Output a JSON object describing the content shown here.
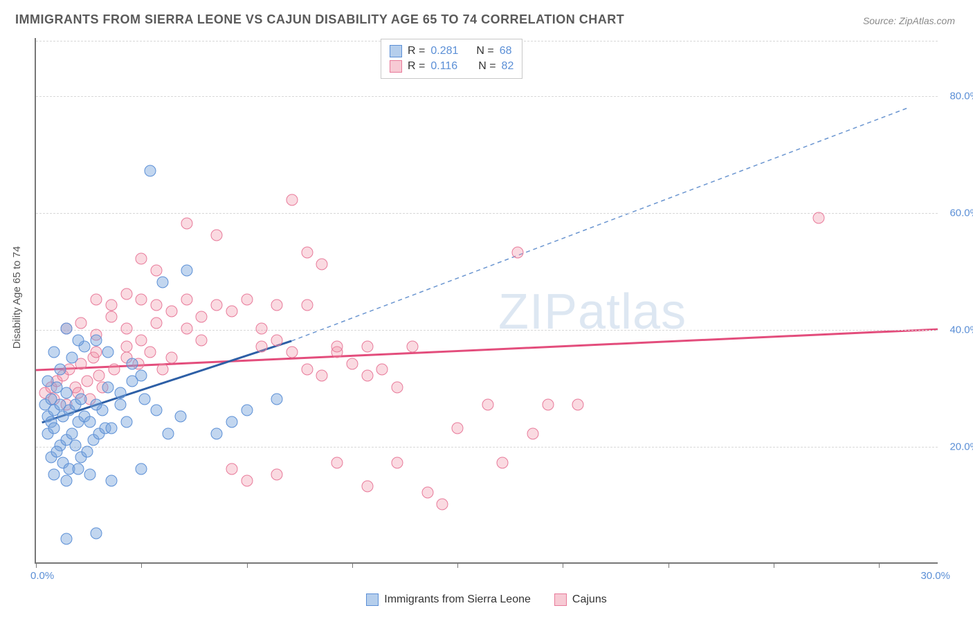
{
  "title": "IMMIGRANTS FROM SIERRA LEONE VS CAJUN DISABILITY AGE 65 TO 74 CORRELATION CHART",
  "source": "Source: ZipAtlas.com",
  "y_axis_label": "Disability Age 65 to 74",
  "watermark": "ZIPatlas",
  "chart": {
    "type": "scatter",
    "xlim": [
      0,
      30
    ],
    "ylim": [
      0,
      90
    ],
    "x_tick_positions": [
      0,
      3.5,
      7,
      10.5,
      14,
      17.5,
      21,
      24.5,
      28
    ],
    "x_tick_labels_shown": {
      "min": "0.0%",
      "max": "30.0%"
    },
    "y_tick_positions": [
      20,
      40,
      60,
      80
    ],
    "y_tick_labels": [
      "20.0%",
      "40.0%",
      "60.0%",
      "80.0%"
    ],
    "grid_color": "#d8d8d8",
    "background_color": "#ffffff",
    "axis_color": "#777777",
    "marker_size": 17,
    "series": [
      {
        "name": "Immigrants from Sierra Leone",
        "color_fill": "rgba(120,165,220,0.45)",
        "color_stroke": "#5b8fd6",
        "R": "0.281",
        "N": "68",
        "trend_line": {
          "x1": 0.2,
          "y1": 24,
          "x2": 8.5,
          "y2": 38,
          "width": 3,
          "dash": "none",
          "color": "#2d5fa6"
        },
        "trend_line_dashed": {
          "x1": 8.5,
          "y1": 38,
          "x2": 29,
          "y2": 78,
          "width": 1.5,
          "dash": "6,5",
          "color": "#6a95d0"
        },
        "points": [
          [
            0.3,
            27
          ],
          [
            0.4,
            25
          ],
          [
            0.5,
            28
          ],
          [
            0.6,
            26
          ],
          [
            0.7,
            30
          ],
          [
            0.5,
            24
          ],
          [
            0.8,
            27
          ],
          [
            0.9,
            25
          ],
          [
            1.0,
            29
          ],
          [
            1.1,
            26
          ],
          [
            0.4,
            22
          ],
          [
            0.6,
            23
          ],
          [
            1.3,
            27
          ],
          [
            1.4,
            24
          ],
          [
            1.5,
            28
          ],
          [
            0.8,
            20
          ],
          [
            1.0,
            21
          ],
          [
            1.2,
            22
          ],
          [
            1.6,
            25
          ],
          [
            1.8,
            24
          ],
          [
            0.5,
            18
          ],
          [
            0.7,
            19
          ],
          [
            0.9,
            17
          ],
          [
            1.1,
            16
          ],
          [
            1.3,
            20
          ],
          [
            1.5,
            18
          ],
          [
            1.7,
            19
          ],
          [
            1.9,
            21
          ],
          [
            2.1,
            22
          ],
          [
            2.3,
            23
          ],
          [
            0.6,
            15
          ],
          [
            1.0,
            14
          ],
          [
            1.4,
            16
          ],
          [
            1.8,
            15
          ],
          [
            2.2,
            26
          ],
          [
            2.5,
            23
          ],
          [
            2.8,
            27
          ],
          [
            3.0,
            24
          ],
          [
            0.4,
            31
          ],
          [
            0.8,
            33
          ],
          [
            1.2,
            35
          ],
          [
            1.6,
            37
          ],
          [
            2.0,
            38
          ],
          [
            2.4,
            36
          ],
          [
            3.2,
            34
          ],
          [
            3.5,
            32
          ],
          [
            1.0,
            40
          ],
          [
            1.4,
            38
          ],
          [
            0.6,
            36
          ],
          [
            2.0,
            27
          ],
          [
            2.4,
            30
          ],
          [
            2.8,
            29
          ],
          [
            3.2,
            31
          ],
          [
            3.6,
            28
          ],
          [
            4.0,
            26
          ],
          [
            4.4,
            22
          ],
          [
            4.8,
            25
          ],
          [
            1.0,
            4
          ],
          [
            2.0,
            5
          ],
          [
            2.5,
            14
          ],
          [
            3.5,
            16
          ],
          [
            4.2,
            48
          ],
          [
            3.8,
            67
          ],
          [
            5.0,
            50
          ],
          [
            6.0,
            22
          ],
          [
            6.5,
            24
          ],
          [
            7.0,
            26
          ],
          [
            8.0,
            28
          ]
        ]
      },
      {
        "name": "Cajuns",
        "color_fill": "rgba(240,150,170,0.35)",
        "color_stroke": "#e87a9a",
        "R": "0.116",
        "N": "82",
        "trend_line": {
          "x1": 0,
          "y1": 33,
          "x2": 30,
          "y2": 40,
          "width": 3,
          "dash": "none",
          "color": "#e34d7c"
        },
        "points": [
          [
            0.3,
            29
          ],
          [
            0.5,
            30
          ],
          [
            0.7,
            31
          ],
          [
            0.9,
            32
          ],
          [
            1.1,
            33
          ],
          [
            1.3,
            30
          ],
          [
            1.5,
            34
          ],
          [
            1.7,
            31
          ],
          [
            1.9,
            35
          ],
          [
            2.1,
            32
          ],
          [
            0.6,
            28
          ],
          [
            1.0,
            27
          ],
          [
            1.4,
            29
          ],
          [
            1.8,
            28
          ],
          [
            2.2,
            30
          ],
          [
            2.6,
            33
          ],
          [
            3.0,
            35
          ],
          [
            3.4,
            34
          ],
          [
            3.8,
            36
          ],
          [
            4.2,
            33
          ],
          [
            1.0,
            40
          ],
          [
            1.5,
            41
          ],
          [
            2.0,
            39
          ],
          [
            2.5,
            42
          ],
          [
            3.0,
            40
          ],
          [
            3.5,
            38
          ],
          [
            4.0,
            41
          ],
          [
            4.5,
            43
          ],
          [
            5.0,
            40
          ],
          [
            5.5,
            42
          ],
          [
            2.0,
            45
          ],
          [
            2.5,
            44
          ],
          [
            3.0,
            46
          ],
          [
            3.5,
            45
          ],
          [
            4.0,
            44
          ],
          [
            5.0,
            45
          ],
          [
            6.0,
            44
          ],
          [
            6.5,
            43
          ],
          [
            7.0,
            45
          ],
          [
            7.5,
            37
          ],
          [
            8.0,
            38
          ],
          [
            8.5,
            36
          ],
          [
            9.0,
            33
          ],
          [
            9.5,
            32
          ],
          [
            10.0,
            36
          ],
          [
            10.5,
            34
          ],
          [
            11.0,
            32
          ],
          [
            11.5,
            33
          ],
          [
            12.0,
            30
          ],
          [
            12.5,
            37
          ],
          [
            5.0,
            58
          ],
          [
            6.0,
            56
          ],
          [
            8.5,
            62
          ],
          [
            9.0,
            53
          ],
          [
            9.5,
            51
          ],
          [
            15.0,
            27
          ],
          [
            16.0,
            53
          ],
          [
            17.0,
            27
          ],
          [
            4.0,
            50
          ],
          [
            3.5,
            52
          ],
          [
            6.5,
            16
          ],
          [
            7.0,
            14
          ],
          [
            8.0,
            15
          ],
          [
            10.0,
            17
          ],
          [
            11.0,
            13
          ],
          [
            12.0,
            17
          ],
          [
            13.0,
            12
          ],
          [
            13.5,
            10
          ],
          [
            14.0,
            23
          ],
          [
            15.5,
            17
          ],
          [
            16.5,
            22
          ],
          [
            18.0,
            27
          ],
          [
            2.0,
            36
          ],
          [
            3.0,
            37
          ],
          [
            4.5,
            35
          ],
          [
            5.5,
            38
          ],
          [
            26.0,
            59
          ],
          [
            8.0,
            44
          ],
          [
            9.0,
            44
          ],
          [
            10.0,
            37
          ],
          [
            11.0,
            37
          ],
          [
            7.5,
            40
          ]
        ]
      }
    ]
  },
  "legend_bottom": [
    {
      "swatch": "blue",
      "label": "Immigrants from Sierra Leone"
    },
    {
      "swatch": "pink",
      "label": "Cajuns"
    }
  ],
  "colors": {
    "blue_text": "#5b8fd6",
    "title_text": "#5a5a5a"
  }
}
